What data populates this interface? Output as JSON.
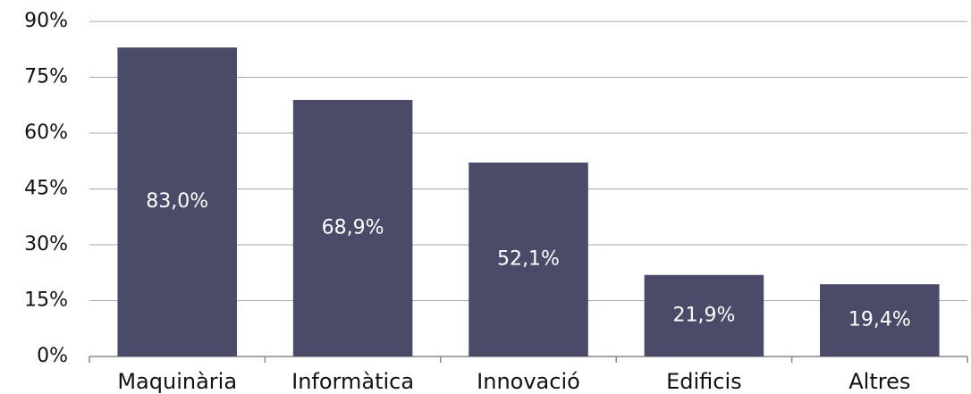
{
  "chart_data": {
    "type": "bar",
    "categories": [
      "Maquinària",
      "Informàtica",
      "Innovació",
      "Edificis",
      "Altres"
    ],
    "values": [
      83.0,
      68.9,
      52.1,
      21.9,
      19.4
    ],
    "value_labels": [
      "83,0%",
      "68,9%",
      "52,1%",
      "21,9%",
      "19,4%"
    ],
    "color": "#4a4b69",
    "ylim": [
      0,
      90
    ],
    "yticks": [
      {
        "value": 0,
        "label": "0%"
      },
      {
        "value": 15,
        "label": "15%"
      },
      {
        "value": 30,
        "label": "30%"
      },
      {
        "value": 45,
        "label": "45%"
      },
      {
        "value": 60,
        "label": "60%"
      },
      {
        "value": 75,
        "label": "75%"
      },
      {
        "value": 90,
        "label": "90%"
      }
    ],
    "grid": true
  }
}
